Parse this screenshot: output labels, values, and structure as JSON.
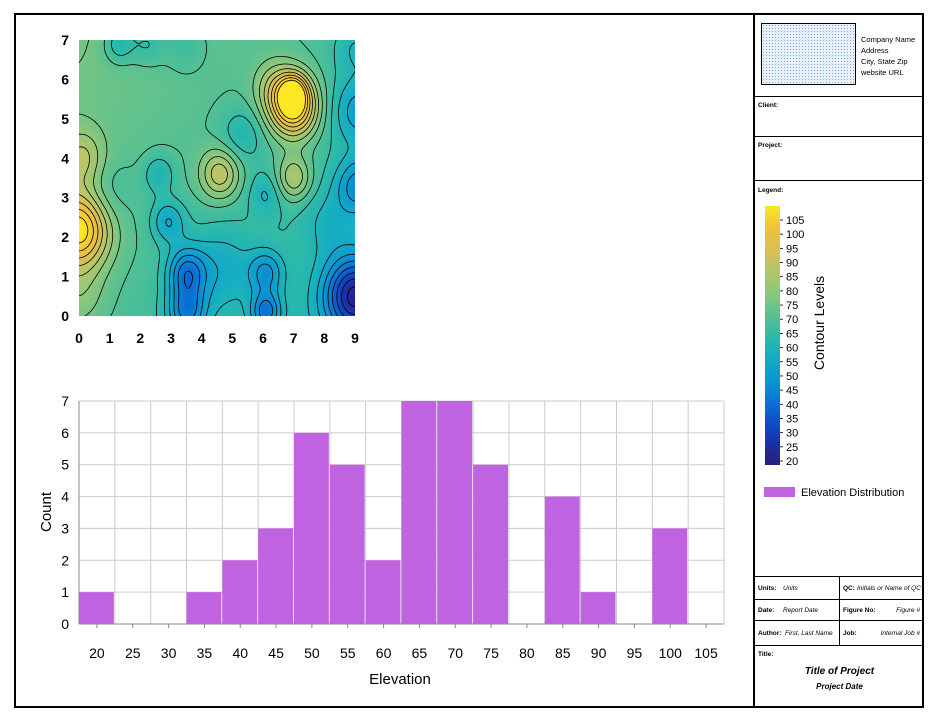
{
  "chart_data": [
    {
      "type": "heatmap",
      "subtype": "filled-contour",
      "xlim": [
        0,
        9
      ],
      "ylim": [
        0,
        7
      ],
      "x_ticks": [
        "0",
        "1",
        "2",
        "3",
        "4",
        "5",
        "6",
        "7",
        "8",
        "9"
      ],
      "y_ticks": [
        "0",
        "1",
        "2",
        "3",
        "4",
        "5",
        "6",
        "7"
      ],
      "colormap": [
        "#2c1e78",
        "#1b2fa8",
        "#0e4fc6",
        "#0a76d6",
        "#0b97d2",
        "#14adc4",
        "#2fbaa7",
        "#5cc18f",
        "#8bc77b",
        "#b5c66a",
        "#d9bf52",
        "#f2c13a",
        "#fde725"
      ],
      "levels": [
        20,
        25,
        30,
        35,
        40,
        45,
        50,
        55,
        60,
        65,
        70,
        75,
        80,
        85,
        90,
        95,
        100,
        105
      ],
      "colorbar_label": "Contour Levels",
      "colorbar_ticks": [
        "105",
        "100",
        "95",
        "90",
        "85",
        "80",
        "75",
        "70",
        "65",
        "60",
        "55",
        "50",
        "45",
        "40",
        "35",
        "30",
        "25",
        "20"
      ]
    },
    {
      "type": "bar",
      "subtype": "histogram",
      "categories": [
        "20",
        "25",
        "30",
        "35",
        "40",
        "45",
        "50",
        "55",
        "60",
        "65",
        "70",
        "75",
        "80",
        "85",
        "90",
        "95",
        "100",
        "105"
      ],
      "values": [
        1,
        0,
        0,
        1,
        2,
        3,
        6,
        5,
        2,
        7,
        7,
        5,
        0,
        4,
        1,
        0,
        3,
        0
      ],
      "xlabel": "Elevation",
      "ylabel": "Count",
      "ylim": [
        0,
        7
      ],
      "y_ticks": [
        "0",
        "1",
        "2",
        "3",
        "4",
        "5",
        "6",
        "7"
      ],
      "grid": true,
      "bar_color": "#c063e0",
      "legend_label": "Elevation Distribution"
    }
  ],
  "title_block": {
    "company_lines": [
      "Company Name",
      "Address",
      "City, State Zip",
      "website URL"
    ],
    "client_label": "Client:",
    "project_label": "Project:",
    "legend_label": "Legend:",
    "units_label": "Units:",
    "units_value": "Units",
    "qc_label": "QC:",
    "qc_value": "Initials or Name of QC",
    "date_label": "Date:",
    "date_value": "Report Date",
    "figure_label": "Figure No:",
    "figure_value": "Figure #",
    "author_label": "Author:",
    "author_value": "First, Last Name",
    "job_label": "Job:",
    "job_value": "Internal Job #",
    "title_label": "Title:",
    "project_title": "Title of Project",
    "project_date": "Project Date"
  }
}
